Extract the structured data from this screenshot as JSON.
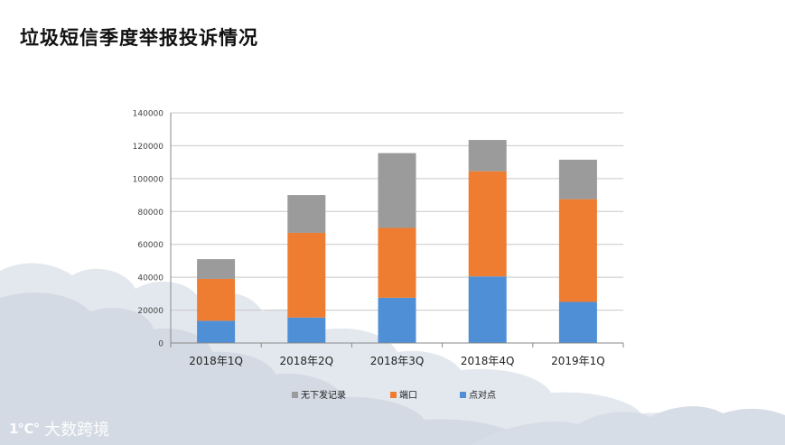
{
  "slide": {
    "title": "垃圾短信季度举报投诉情况",
    "watermark_logo": "1℃°",
    "watermark_text": "大数跨境"
  },
  "colors": {
    "cloud": "#d4dbe4",
    "cloud_light": "#e6ebf1",
    "grid": "#c8c8c8",
    "axis": "#8a8a8a"
  },
  "chart_data": {
    "type": "bar",
    "stacked": true,
    "categories": [
      "2018年1Q",
      "2018年2Q",
      "2018年3Q",
      "2018年4Q",
      "2019年1Q"
    ],
    "series": [
      {
        "name": "点对点",
        "color": "#4f8fd6",
        "values": [
          13500,
          15500,
          27500,
          40500,
          25000
        ]
      },
      {
        "name": "端口",
        "color": "#ee7d31",
        "values": [
          25500,
          51500,
          42500,
          64000,
          62500
        ]
      },
      {
        "name": "无下发记录",
        "color": "#9b9b9b",
        "values": [
          12000,
          23000,
          45500,
          19000,
          24000
        ]
      }
    ],
    "legend_order": [
      "无下发记录",
      "端口",
      "点对点"
    ],
    "ylim": [
      0,
      140000
    ],
    "yticks": [
      0,
      20000,
      40000,
      60000,
      80000,
      100000,
      120000,
      140000
    ],
    "ytick_labels": [
      "0",
      "20000",
      "40000",
      "60000",
      "80000",
      "100000",
      "120000",
      "140000"
    ],
    "grid": true,
    "legend_position": "bottom"
  }
}
